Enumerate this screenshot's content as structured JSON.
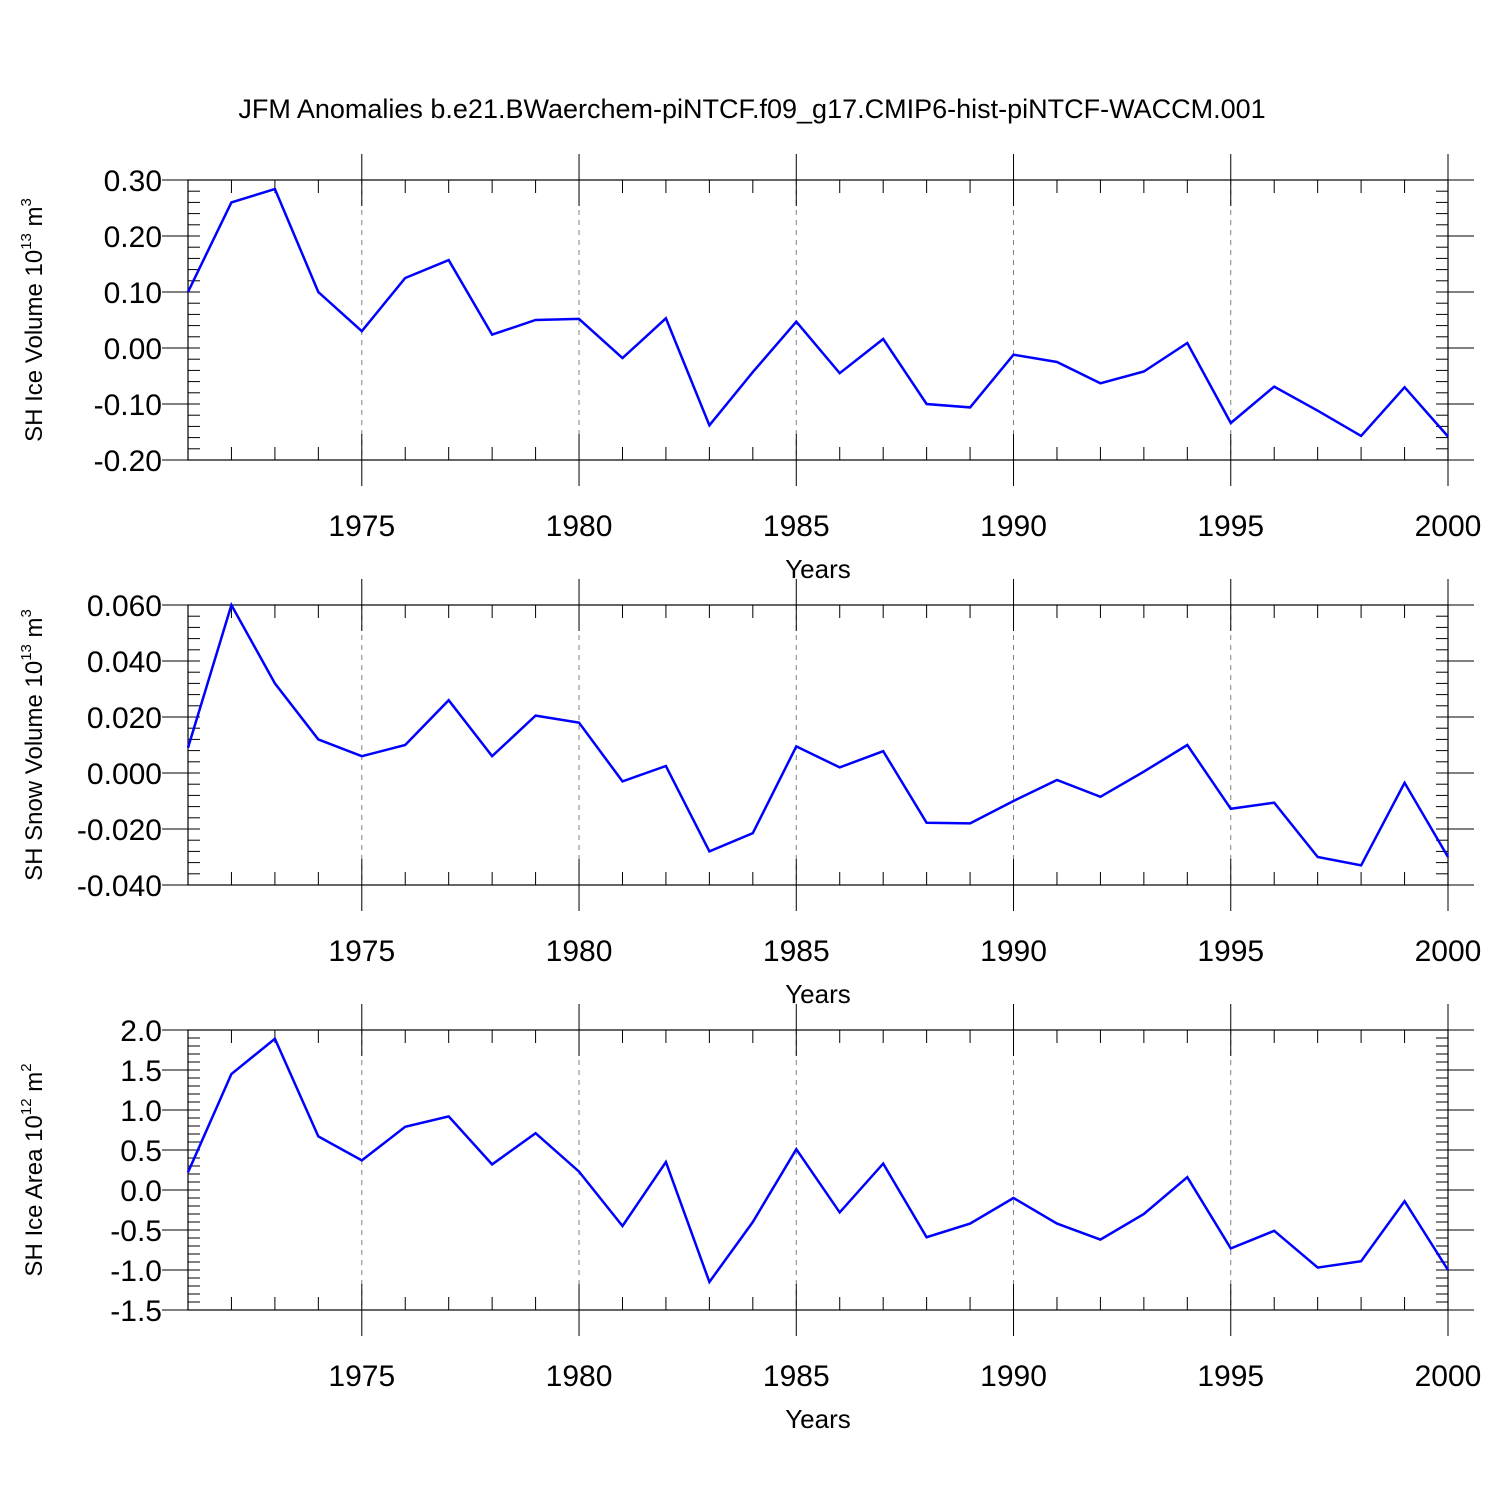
{
  "figure_title": "JFM Anomalies b.e21.BWaerchem-piNTCF.f09_g17.CMIP6-hist-piNTCF-WACCM.001",
  "colors": {
    "line": "#0000ff",
    "axes": "#000000",
    "grid": "#808080"
  },
  "chart_data": [
    {
      "type": "line",
      "title": "JFM Anomalies b.e21.BWaerchem-piNTCF.f09_g17.CMIP6-hist-piNTCF-WACCM.001",
      "xlabel": "Years",
      "ylabel": {
        "text": "SH Ice Volume 10",
        "sup": "13",
        "unit": " m",
        "unit_sup": "3"
      },
      "xlim": [
        1971,
        2000
      ],
      "ylim": [
        -0.2,
        0.3
      ],
      "x_ticks": [
        1975,
        1980,
        1985,
        1990,
        1995,
        2000
      ],
      "y_ticks": [
        -0.2,
        -0.1,
        0.0,
        0.1,
        0.2,
        0.3
      ],
      "y_tick_labels": [
        "-0.20",
        "-0.10",
        "0.00",
        "0.10",
        "0.20",
        "0.30"
      ],
      "y_minor_step": 0.02,
      "grid": "vertical dashed at major x ticks",
      "x": [
        1971,
        1972,
        1973,
        1974,
        1975,
        1976,
        1977,
        1978,
        1979,
        1980,
        1981,
        1982,
        1983,
        1984,
        1985,
        1986,
        1987,
        1988,
        1989,
        1990,
        1991,
        1992,
        1993,
        1994,
        1995,
        1996,
        1997,
        1998,
        1999,
        2000
      ],
      "series": [
        {
          "values": [
            0.1,
            0.26,
            0.284,
            0.1,
            0.03,
            0.125,
            0.157,
            0.024,
            0.05,
            0.052,
            -0.018,
            0.053,
            -0.138,
            -0.043,
            0.047,
            -0.045,
            0.016,
            -0.1,
            -0.106,
            -0.012,
            -0.025,
            -0.063,
            -0.042,
            0.009,
            -0.134,
            -0.069,
            -0.112,
            -0.157,
            -0.07,
            -0.158
          ]
        }
      ]
    },
    {
      "type": "line",
      "xlabel": "Years",
      "ylabel": {
        "text": "SH Snow Volume 10",
        "sup": "13",
        "unit": " m",
        "unit_sup": "3"
      },
      "xlim": [
        1971,
        2000
      ],
      "ylim": [
        -0.04,
        0.06
      ],
      "x_ticks": [
        1975,
        1980,
        1985,
        1990,
        1995,
        2000
      ],
      "y_ticks": [
        -0.04,
        -0.02,
        0.0,
        0.02,
        0.04,
        0.06
      ],
      "y_tick_labels": [
        "-0.040",
        "-0.020",
        "0.000",
        "0.020",
        "0.040",
        "0.060"
      ],
      "y_minor_step": 0.004,
      "grid": "vertical dashed at major x ticks",
      "x": [
        1971,
        1972,
        1973,
        1974,
        1975,
        1976,
        1977,
        1978,
        1979,
        1980,
        1981,
        1982,
        1983,
        1984,
        1985,
        1986,
        1987,
        1988,
        1989,
        1990,
        1991,
        1992,
        1993,
        1994,
        1995,
        1996,
        1997,
        1998,
        1999,
        2000
      ],
      "series": [
        {
          "values": [
            0.009,
            0.06,
            0.032,
            0.012,
            0.006,
            0.01,
            0.026,
            0.006,
            0.0205,
            0.018,
            -0.003,
            0.0025,
            -0.028,
            -0.0215,
            0.0095,
            0.002,
            0.0078,
            -0.0178,
            -0.018,
            -0.01,
            -0.0025,
            -0.0085,
            0.0005,
            0.01,
            -0.0128,
            -0.0106,
            -0.03,
            -0.033,
            -0.0035,
            -0.03
          ]
        }
      ]
    },
    {
      "type": "line",
      "xlabel": "Years",
      "ylabel": {
        "text": "SH Ice Area 10",
        "sup": "12",
        "unit": " m",
        "unit_sup": "2"
      },
      "xlim": [
        1971,
        2000
      ],
      "ylim": [
        -1.5,
        2.0
      ],
      "x_ticks": [
        1975,
        1980,
        1985,
        1990,
        1995,
        2000
      ],
      "y_ticks": [
        -1.5,
        -1.0,
        -0.5,
        0.0,
        0.5,
        1.0,
        1.5,
        2.0
      ],
      "y_tick_labels": [
        "-1.5",
        "-1.0",
        "-0.5",
        "0.0",
        "0.5",
        "1.0",
        "1.5",
        "2.0"
      ],
      "y_minor_step": 0.1,
      "grid": "vertical dashed at major x ticks",
      "x": [
        1971,
        1972,
        1973,
        1974,
        1975,
        1976,
        1977,
        1978,
        1979,
        1980,
        1981,
        1982,
        1983,
        1984,
        1985,
        1986,
        1987,
        1988,
        1989,
        1990,
        1991,
        1992,
        1993,
        1994,
        1995,
        1996,
        1997,
        1998,
        1999,
        2000
      ],
      "series": [
        {
          "values": [
            0.22,
            1.45,
            1.89,
            0.67,
            0.37,
            0.79,
            0.92,
            0.32,
            0.71,
            0.23,
            -0.45,
            0.35,
            -1.15,
            -0.4,
            0.51,
            -0.28,
            0.33,
            -0.59,
            -0.42,
            -0.1,
            -0.42,
            -0.62,
            -0.3,
            0.16,
            -0.73,
            -0.51,
            -0.97,
            -0.89,
            -0.14,
            -1.0
          ]
        }
      ]
    }
  ]
}
